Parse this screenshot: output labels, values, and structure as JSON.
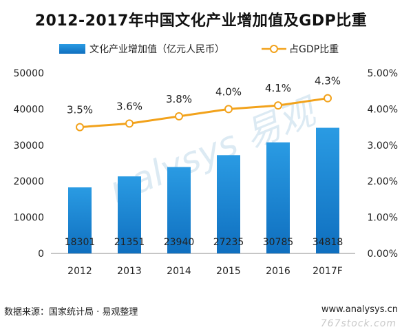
{
  "title": "2012-2017年中国文化产业增加值及GDP比重",
  "corner_mark": "",
  "source": "数据来源：国家统计局 · 易观整理",
  "site": "www.analysys.cn",
  "watermark_logo": "nalysys 易观",
  "watermark_text": "767stock.com",
  "chart_data": {
    "type": "bar+line",
    "categories": [
      "2012",
      "2013",
      "2014",
      "2015",
      "2016",
      "2017F"
    ],
    "series": [
      {
        "name": "文化产业增加值（亿元人民币）",
        "type": "bar",
        "axis": "left",
        "values": [
          18301,
          21351,
          23940,
          27235,
          30785,
          34818
        ],
        "labels": [
          "18301",
          "21351",
          "23940",
          "27235",
          "30785",
          "34818"
        ],
        "color": "#1a8ad6"
      },
      {
        "name": "占GDP比重",
        "type": "line",
        "axis": "right",
        "values": [
          3.5,
          3.6,
          3.8,
          4.0,
          4.1,
          4.3
        ],
        "labels": [
          "3.5%",
          "3.6%",
          "3.8%",
          "4.0%",
          "4.1%",
          "4.3%"
        ],
        "color": "#f2a21b"
      }
    ],
    "y_left": {
      "min": 0,
      "max": 50000,
      "ticks": [
        "0",
        "10000",
        "20000",
        "30000",
        "40000",
        "50000"
      ]
    },
    "y_right": {
      "min": 0,
      "max": 5,
      "ticks": [
        "0.00%",
        "1.00%",
        "2.00%",
        "3.00%",
        "4.00%",
        "5.00%"
      ]
    },
    "grid": false,
    "legend": "top"
  }
}
